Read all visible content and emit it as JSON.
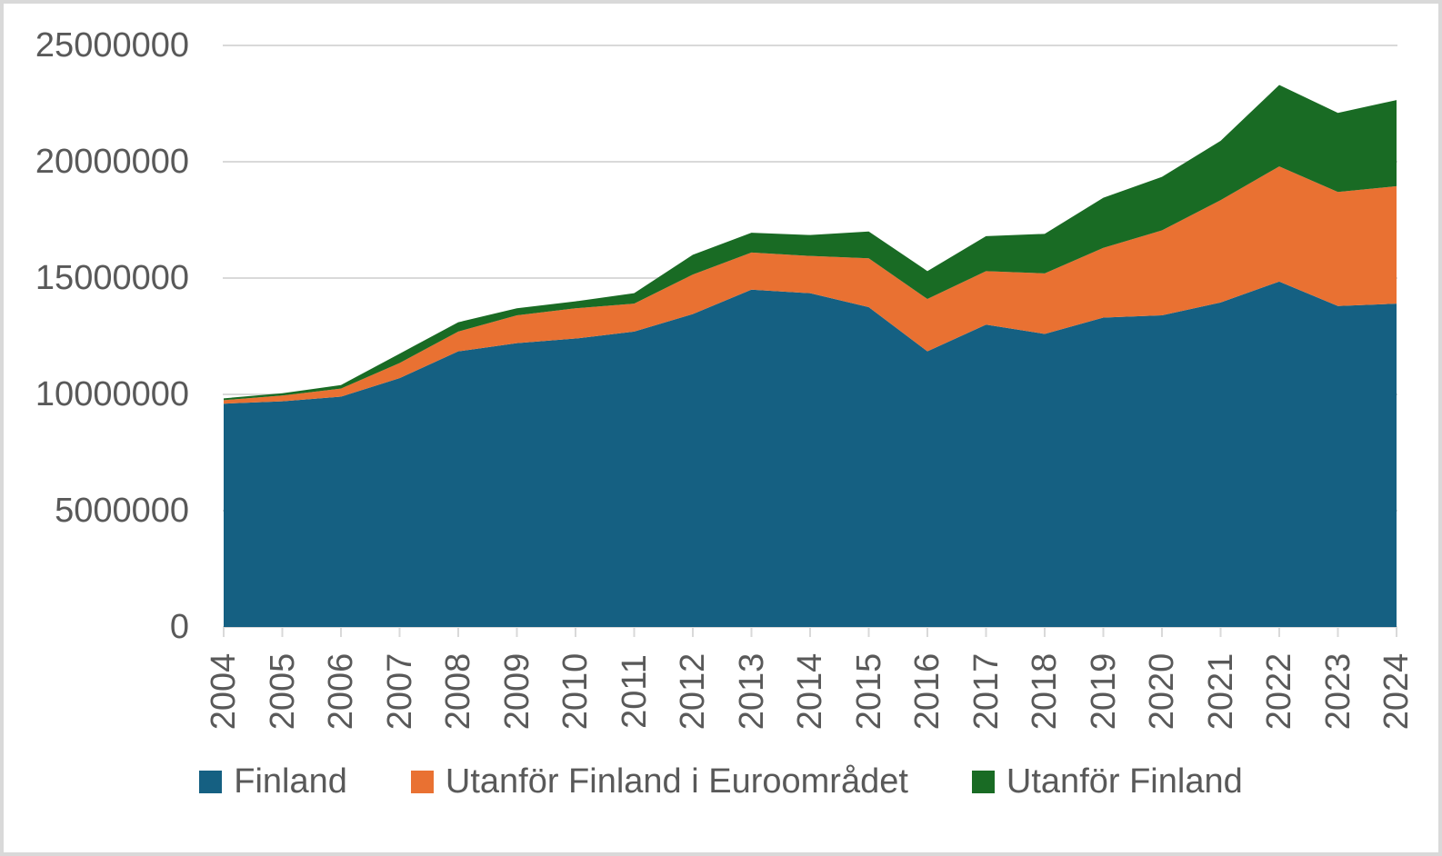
{
  "chart_data": {
    "type": "area",
    "stacked": true,
    "title": "",
    "xlabel": "",
    "ylabel": "",
    "x": [
      2004,
      2005,
      2006,
      2007,
      2008,
      2009,
      2010,
      2011,
      2012,
      2013,
      2014,
      2015,
      2016,
      2017,
      2018,
      2019,
      2020,
      2021,
      2022,
      2023,
      2024
    ],
    "series": [
      {
        "name": "Finland",
        "color": "#156082",
        "values": [
          9600000,
          9700000,
          9900000,
          10700000,
          11850000,
          12200000,
          12400000,
          12700000,
          13450000,
          14500000,
          14350000,
          13750000,
          11850000,
          13000000,
          12600000,
          13300000,
          13400000,
          13950000,
          14850000,
          13800000,
          13900000
        ]
      },
      {
        "name": "Utanför Finland i Euroområdet",
        "color": "#E97132",
        "values": [
          150000,
          250000,
          350000,
          650000,
          850000,
          1200000,
          1300000,
          1200000,
          1700000,
          1600000,
          1600000,
          2100000,
          2250000,
          2300000,
          2600000,
          3000000,
          3650000,
          4400000,
          4950000,
          4900000,
          5050000
        ]
      },
      {
        "name": "Utanför Finland",
        "color": "#196B24",
        "values": [
          80000,
          100000,
          150000,
          400000,
          400000,
          300000,
          300000,
          450000,
          850000,
          850000,
          900000,
          1150000,
          1200000,
          1500000,
          1700000,
          2150000,
          2300000,
          2550000,
          3500000,
          3400000,
          3700000
        ]
      }
    ],
    "ylim": [
      0,
      25000000
    ],
    "y_tick_labels": [
      "25000000",
      "20000000",
      "15000000",
      "10000000",
      "5000000",
      "0"
    ],
    "grid": true,
    "gridline_color": "#D9D9D9",
    "axis_text_color": "#595959",
    "legend_position": "bottom"
  }
}
